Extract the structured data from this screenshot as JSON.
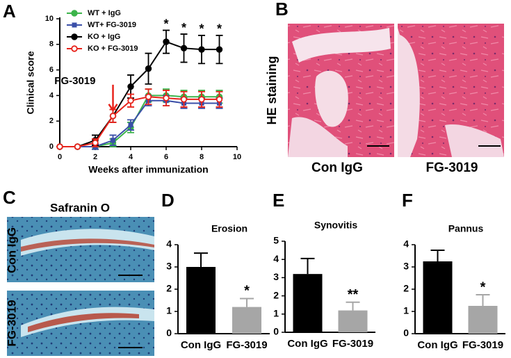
{
  "figure": {
    "panel_labels": [
      "A",
      "B",
      "C",
      "D",
      "E",
      "F"
    ],
    "he_label": "HE staining",
    "b_captions": [
      "Con IgG",
      "FG-3019"
    ],
    "c_title": "Safranin O",
    "c_labels": [
      "Con IgG",
      "FG-3019"
    ]
  },
  "chart_data": [
    {
      "type": "line",
      "xlabel": "Weeks after immunization",
      "ylabel": "Clinical score",
      "x": [
        0,
        1,
        2,
        3,
        4,
        5,
        6,
        7,
        8,
        9
      ],
      "xlim": [
        0,
        10
      ],
      "xticks": [
        0,
        2,
        4,
        6,
        8,
        10
      ],
      "ylim": [
        0,
        10
      ],
      "yticks": [
        0,
        2,
        4,
        6,
        8,
        10
      ],
      "legend": "upper left",
      "series": [
        {
          "name": "WT + IgG",
          "color": "#3cb44b",
          "marker": "circle",
          "values": [
            0,
            0,
            0,
            0.3,
            1.5,
            4.0,
            4.0,
            3.9,
            3.9,
            3.9
          ],
          "errors": [
            0,
            0,
            0.2,
            0.3,
            0.4,
            0.5,
            0.5,
            0.5,
            0.5,
            0.5
          ]
        },
        {
          "name": "WT+ FG-3019",
          "color": "#3a4fa8",
          "marker": "square",
          "values": [
            0,
            0,
            0,
            0.5,
            1.7,
            3.6,
            3.6,
            3.4,
            3.4,
            3.4
          ],
          "errors": [
            0,
            0,
            0.2,
            0.4,
            0.4,
            0.4,
            0.4,
            0.4,
            0.4,
            0.4
          ]
        },
        {
          "name": "KO + IgG",
          "color": "#000000",
          "marker": "circle",
          "values": [
            0,
            0,
            0.5,
            2.4,
            4.7,
            6.1,
            8.2,
            7.7,
            7.6,
            7.6
          ],
          "errors": [
            0,
            0,
            0.4,
            0.5,
            0.9,
            1.2,
            0.9,
            1.1,
            1.1,
            1.1
          ]
        },
        {
          "name": "KO + FG-3019",
          "color": "#e8241c",
          "marker": "open-circle",
          "values": [
            0,
            0,
            0.3,
            2.4,
            3.6,
            3.9,
            3.8,
            3.7,
            3.7,
            3.7
          ],
          "errors": [
            0,
            0,
            0.3,
            0.5,
            0.5,
            0.6,
            0.6,
            0.6,
            0.6,
            0.6
          ]
        }
      ],
      "annotations": [
        {
          "text": "FG-3019",
          "x": 3,
          "arrow": true
        },
        {
          "text": "*",
          "x": 6
        },
        {
          "text": "*",
          "x": 7
        },
        {
          "text": "*",
          "x": 8
        },
        {
          "text": "*",
          "x": 9
        }
      ]
    },
    {
      "type": "bar",
      "title": "Erosion",
      "categories": [
        "Con IgG",
        "FG-3019"
      ],
      "values": [
        3.0,
        1.2
      ],
      "errors": [
        0.62,
        0.38
      ],
      "colors": [
        "#000000",
        "#a6a6a6"
      ],
      "ylim": [
        0,
        4
      ],
      "yticks": [
        0,
        1,
        2,
        3,
        4
      ],
      "annotations": [
        {
          "text": "*",
          "category": "FG-3019"
        }
      ]
    },
    {
      "type": "bar",
      "title": "Synovitis",
      "categories": [
        "Con IgG",
        "FG-3019"
      ],
      "values": [
        3.2,
        1.2
      ],
      "errors": [
        0.85,
        0.45
      ],
      "colors": [
        "#000000",
        "#a6a6a6"
      ],
      "ylim": [
        0,
        5
      ],
      "yticks": [
        0,
        1,
        2,
        3,
        4,
        5
      ],
      "annotations": [
        {
          "text": "**",
          "category": "FG-3019"
        }
      ]
    },
    {
      "type": "bar",
      "title": "Pannus",
      "categories": [
        "Con IgG",
        "FG-3019"
      ],
      "values": [
        3.25,
        1.25
      ],
      "errors": [
        0.5,
        0.5
      ],
      "colors": [
        "#000000",
        "#a6a6a6"
      ],
      "ylim": [
        0,
        4
      ],
      "yticks": [
        0,
        1,
        2,
        3,
        4
      ],
      "annotations": [
        {
          "text": "*",
          "category": "FG-3019"
        }
      ]
    }
  ]
}
